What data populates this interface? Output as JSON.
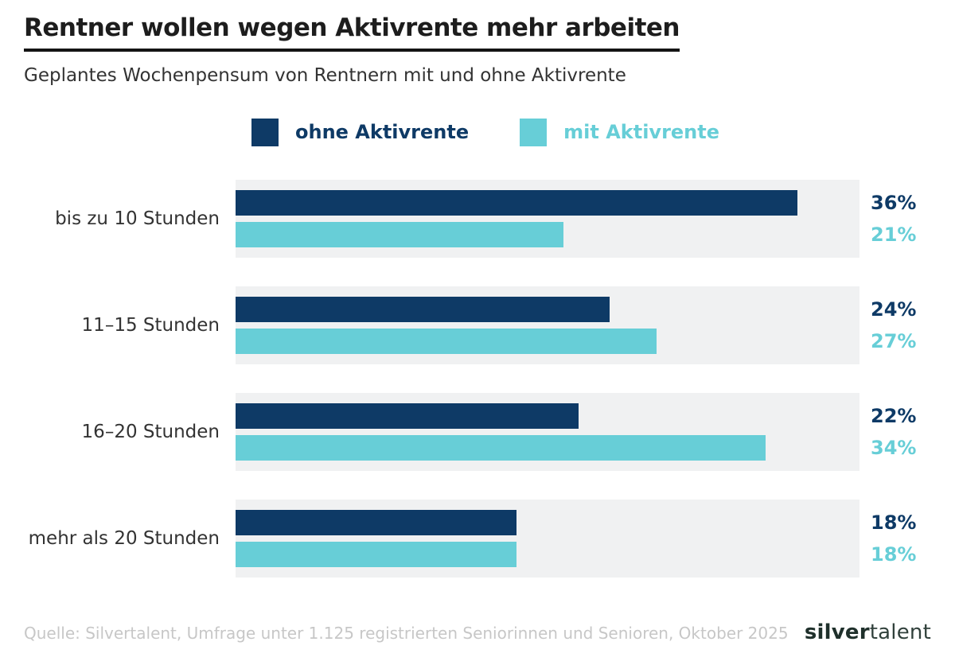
{
  "header": {
    "title": "Rentner wollen wegen Aktivrente mehr arbeiten",
    "subtitle": "Geplantes Wochenpensum von Rentnern mit und ohne Aktivrente"
  },
  "legend": [
    {
      "label": "ohne Aktivrente",
      "color": "#0e3a66"
    },
    {
      "label": "mit Aktivrente",
      "color": "#67ced7"
    }
  ],
  "colors": {
    "navy": "#0e3a66",
    "cyan": "#67ced7",
    "track": "#f0f1f2",
    "title_text": "#1d1d1d",
    "subtitle_text": "#333333",
    "source_text": "#c7c7c7",
    "logo_text": "#1f302b"
  },
  "chart_data": {
    "type": "bar",
    "orientation": "horizontal",
    "title": "Rentner wollen wegen Aktivrente mehr arbeiten",
    "subtitle": "Geplantes Wochenpensum von Rentnern mit und ohne Aktivrente",
    "categories": [
      "bis zu 10 Stunden",
      "11–15 Stunden",
      "16–20 Stunden",
      "mehr als 20 Stunden"
    ],
    "series": [
      {
        "name": "ohne Aktivrente",
        "color": "#0e3a66",
        "values": [
          36,
          24,
          22,
          18
        ],
        "labels": [
          "36%",
          "24%",
          "22%",
          "18%"
        ]
      },
      {
        "name": "mit Aktivrente",
        "color": "#67ced7",
        "values": [
          21,
          27,
          34,
          18
        ],
        "labels": [
          "21%",
          "27%",
          "34%",
          "18%"
        ]
      }
    ],
    "value_suffix": "%",
    "xlim": [
      0,
      40
    ],
    "grid": false,
    "legend_position": "top",
    "track_color": "#f0f1f2"
  },
  "footer": {
    "source": "Quelle: Silvertalent, Umfrage unter 1.125 registrierten Seniorinnen und Senioren, Oktober 2025",
    "logo": {
      "bold": "silver",
      "light": "talent"
    }
  }
}
